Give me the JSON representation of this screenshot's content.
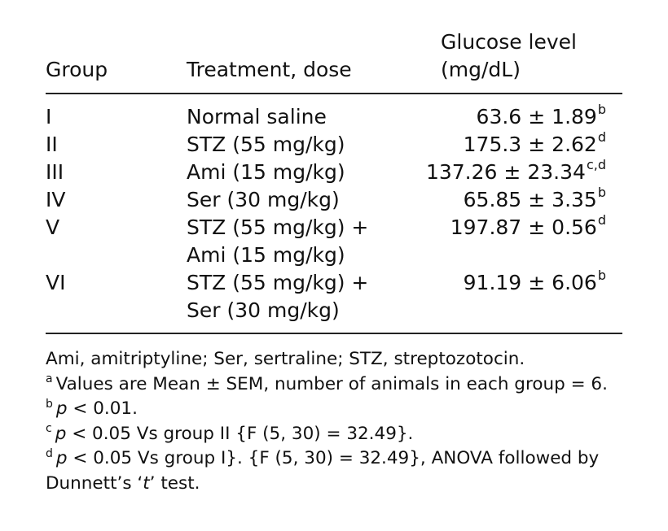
{
  "headers": {
    "group": "Group",
    "treatment": "Treatment, dose",
    "glucose_line1": "Glucose level",
    "glucose_line2": "(mg/dL)"
  },
  "rows": [
    {
      "group": "I",
      "treatment": [
        "Normal saline"
      ],
      "mean": "63.6",
      "pm": "±",
      "sem": "1.89",
      "sup": "b"
    },
    {
      "group": "II",
      "treatment": [
        "STZ (55 mg/kg)"
      ],
      "mean": "175.3",
      "pm": "±",
      "sem": "2.62",
      "sup": "d"
    },
    {
      "group": "III",
      "treatment": [
        "Ami (15 mg/kg)"
      ],
      "mean": "137.26",
      "pm": "±",
      "sem": "23.34",
      "sup": "c,d"
    },
    {
      "group": "IV",
      "treatment": [
        "Ser (30 mg/kg)"
      ],
      "mean": "65.85",
      "pm": "±",
      "sem": "3.35",
      "sup": "b"
    },
    {
      "group": "V",
      "treatment": [
        "STZ (55 mg/kg) +",
        "Ami (15 mg/kg)"
      ],
      "mean": "197.87",
      "pm": "±",
      "sem": "0.56",
      "sup": "d"
    },
    {
      "group": "VI",
      "treatment": [
        "STZ (55 mg/kg) +",
        "Ser (30 mg/kg)"
      ],
      "mean": "91.19",
      "pm": "±",
      "sem": "6.06",
      "sup": "b"
    }
  ],
  "footnotes": {
    "abbrev": "Ami, amitriptyline; Ser, sertraline; STZ, streptozotocin.",
    "a": {
      "mark": "a",
      "text": "Values are Mean ± SEM, number of animals in each group = 6."
    },
    "b": {
      "mark": "b",
      "p": "p",
      "text": " < 0.01."
    },
    "c": {
      "mark": "c",
      "p": "p",
      "text": " < 0.05 Vs group II {F (5, 30) = 32.49}."
    },
    "d": {
      "mark": "d",
      "p": "p",
      "text": " < 0.05 Vs group I}. {F (5, 30) = 32.49}, ANOVA followed by"
    },
    "d_cont_pre": "Dunnett’s ‘",
    "d_cont_t": "t",
    "d_cont_post": "’ test."
  }
}
